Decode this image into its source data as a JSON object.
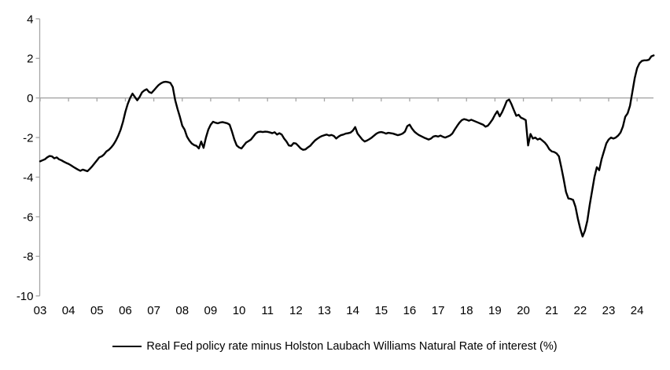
{
  "chart_data": {
    "type": "line",
    "title": "",
    "legend": {
      "position": "bottom",
      "label": "Real Fed policy rate minus Holston Laubach Williams Natural Rate of interest (%)"
    },
    "line_color": "#000000",
    "axis_color": "#a6a6a6",
    "grid": "zero-line-only",
    "y_axis": {
      "min": -10,
      "max": 4,
      "ticks": [
        4,
        2,
        0,
        -2,
        -4,
        -6,
        -8,
        -10
      ]
    },
    "x_axis": {
      "tick_labels": [
        "03",
        "04",
        "05",
        "06",
        "07",
        "08",
        "09",
        "10",
        "11",
        "12",
        "13",
        "14",
        "15",
        "16",
        "17",
        "18",
        "19",
        "20",
        "21",
        "22",
        "23",
        "24"
      ]
    },
    "series": [
      {
        "name": "Real Fed policy rate minus Holston Laubach Williams Natural Rate of interest (%)",
        "start_year": 2003,
        "frequency": "monthly",
        "values": [
          -3.2,
          -3.15,
          -3.1,
          -3.0,
          -2.93,
          -2.95,
          -3.05,
          -3.0,
          -3.1,
          -3.15,
          -3.22,
          -3.28,
          -3.33,
          -3.4,
          -3.48,
          -3.55,
          -3.62,
          -3.68,
          -3.62,
          -3.66,
          -3.7,
          -3.58,
          -3.45,
          -3.3,
          -3.15,
          -3.0,
          -2.95,
          -2.85,
          -2.7,
          -2.62,
          -2.5,
          -2.35,
          -2.15,
          -1.9,
          -1.6,
          -1.2,
          -0.7,
          -0.3,
          0.0,
          0.22,
          0.05,
          -0.12,
          0.05,
          0.28,
          0.38,
          0.44,
          0.3,
          0.25,
          0.38,
          0.52,
          0.65,
          0.74,
          0.8,
          0.82,
          0.8,
          0.76,
          0.55,
          -0.1,
          -0.55,
          -0.95,
          -1.4,
          -1.6,
          -1.95,
          -2.15,
          -2.3,
          -2.38,
          -2.42,
          -2.55,
          -2.2,
          -2.52,
          -2.0,
          -1.6,
          -1.35,
          -1.2,
          -1.25,
          -1.28,
          -1.24,
          -1.22,
          -1.25,
          -1.28,
          -1.35,
          -1.7,
          -2.1,
          -2.4,
          -2.5,
          -2.55,
          -2.4,
          -2.25,
          -2.18,
          -2.1,
          -1.95,
          -1.8,
          -1.72,
          -1.7,
          -1.72,
          -1.7,
          -1.71,
          -1.74,
          -1.78,
          -1.73,
          -1.85,
          -1.78,
          -1.85,
          -2.05,
          -2.2,
          -2.4,
          -2.42,
          -2.28,
          -2.3,
          -2.42,
          -2.55,
          -2.62,
          -2.6,
          -2.5,
          -2.42,
          -2.28,
          -2.15,
          -2.06,
          -1.98,
          -1.92,
          -1.88,
          -1.85,
          -1.9,
          -1.87,
          -1.92,
          -2.05,
          -1.95,
          -1.88,
          -1.85,
          -1.8,
          -1.78,
          -1.75,
          -1.65,
          -1.47,
          -1.8,
          -1.95,
          -2.1,
          -2.2,
          -2.15,
          -2.08,
          -2.0,
          -1.9,
          -1.8,
          -1.74,
          -1.72,
          -1.75,
          -1.8,
          -1.76,
          -1.78,
          -1.8,
          -1.84,
          -1.88,
          -1.85,
          -1.8,
          -1.7,
          -1.42,
          -1.35,
          -1.55,
          -1.7,
          -1.8,
          -1.88,
          -1.94,
          -2.0,
          -2.05,
          -2.1,
          -2.05,
          -1.95,
          -1.92,
          -1.95,
          -1.9,
          -1.96,
          -2.0,
          -1.95,
          -1.9,
          -1.8,
          -1.6,
          -1.42,
          -1.25,
          -1.12,
          -1.07,
          -1.1,
          -1.15,
          -1.1,
          -1.15,
          -1.2,
          -1.25,
          -1.3,
          -1.35,
          -1.45,
          -1.4,
          -1.25,
          -1.08,
          -0.85,
          -0.67,
          -0.93,
          -0.72,
          -0.45,
          -0.15,
          -0.08,
          -0.32,
          -0.62,
          -0.9,
          -0.85,
          -1.0,
          -1.05,
          -1.12,
          -2.4,
          -1.82,
          -2.05,
          -2.0,
          -2.1,
          -2.05,
          -2.15,
          -2.25,
          -2.4,
          -2.6,
          -2.7,
          -2.73,
          -2.8,
          -2.95,
          -3.5,
          -4.1,
          -4.75,
          -5.08,
          -5.1,
          -5.15,
          -5.5,
          -6.1,
          -6.6,
          -7.0,
          -6.7,
          -6.2,
          -5.4,
          -4.7,
          -4.0,
          -3.5,
          -3.65,
          -3.1,
          -2.7,
          -2.3,
          -2.1,
          -2.0,
          -2.05,
          -2.0,
          -1.9,
          -1.75,
          -1.45,
          -0.95,
          -0.78,
          -0.4,
          0.3,
          1.0,
          1.5,
          1.75,
          1.87,
          1.9,
          1.9,
          1.93,
          2.1,
          2.15
        ]
      }
    ]
  }
}
